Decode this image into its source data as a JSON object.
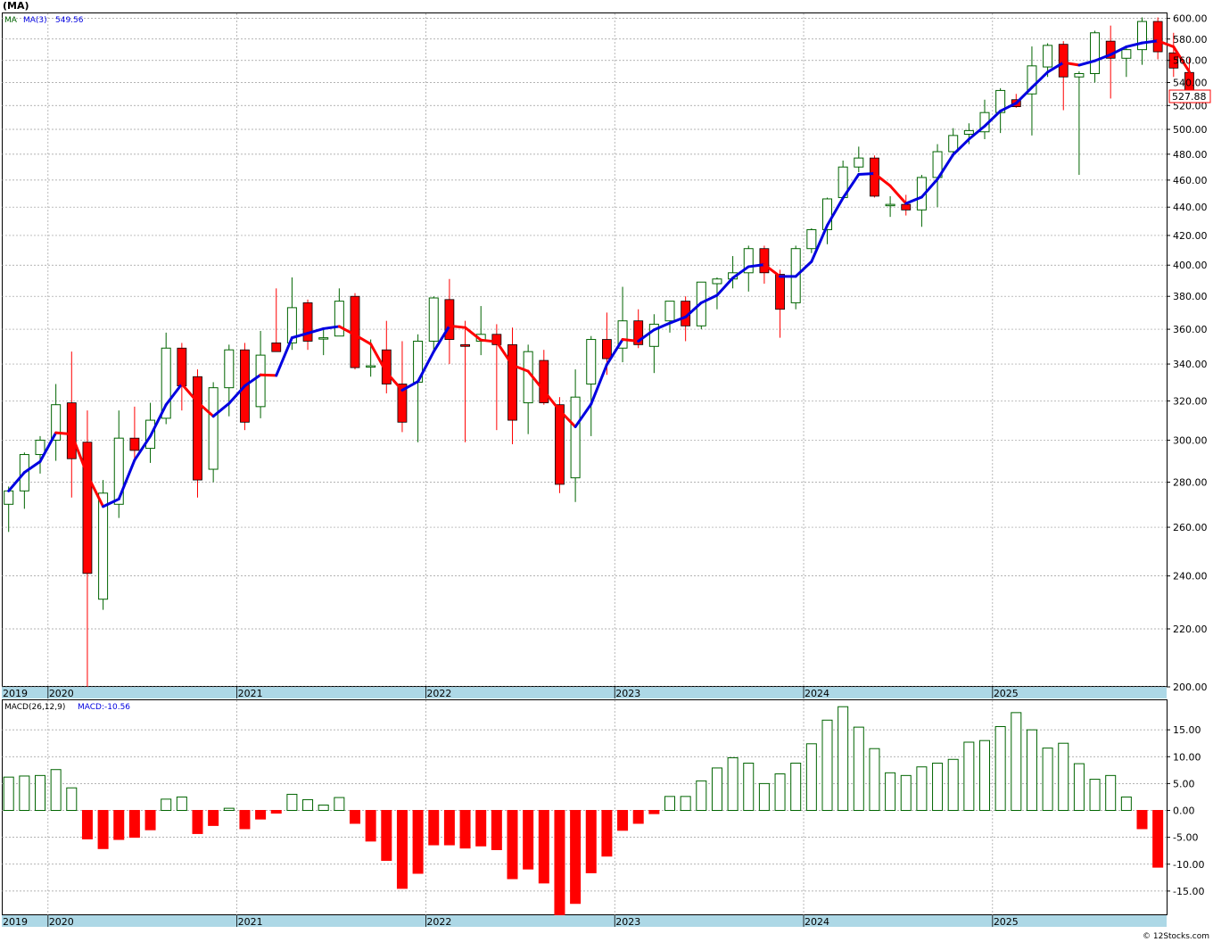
{
  "ticker": "(MA)",
  "watermark": "© 12Stocks.com",
  "colors": {
    "up": "#006400",
    "down": "#ff0000",
    "ma_up": "#0000e0",
    "ma_down": "#ff0000",
    "axis_band": "#add8e6"
  },
  "chart_data": [
    {
      "type": "candlestick",
      "name": "price",
      "legend_label": "MA",
      "indicator_label": "MA(3)",
      "indicator_value": "549.56",
      "last_price_label": "527.88",
      "scale": "log",
      "ylim": [
        200,
        605
      ],
      "yticks": [
        200,
        220,
        240,
        260,
        280,
        300,
        320,
        340,
        360,
        380,
        400,
        420,
        440,
        460,
        480,
        500,
        520,
        540,
        560,
        580,
        600
      ],
      "ytick_labels": [
        "200.00",
        "220.00",
        "240.00",
        "260.00",
        "280.00",
        "300.00",
        "320.00",
        "340.00",
        "360.00",
        "380.00",
        "400.00",
        "420.00",
        "440.00",
        "460.00",
        "480.00",
        "500.00",
        "520.00",
        "540.00",
        "560.00",
        "580.00",
        "600.00"
      ],
      "grid": true,
      "year_labels": [
        "2019",
        "2020",
        "2021",
        "2022",
        "2023",
        "2024",
        "2025"
      ],
      "year_boundary_index": [
        -0.5,
        2.5,
        14.5,
        26.5,
        38.5,
        50.5,
        62.5
      ],
      "candles": [
        {
          "o": 270,
          "h": 278,
          "l": 258,
          "c": 276
        },
        {
          "o": 276,
          "h": 294,
          "l": 268,
          "c": 293
        },
        {
          "o": 293,
          "h": 302,
          "l": 284,
          "c": 300
        },
        {
          "o": 300,
          "h": 329,
          "l": 290,
          "c": 318
        },
        {
          "o": 319,
          "h": 347,
          "l": 273,
          "c": 291
        },
        {
          "o": 299,
          "h": 315,
          "l": 200,
          "c": 241
        },
        {
          "o": 231,
          "h": 281,
          "l": 227,
          "c": 275
        },
        {
          "o": 270,
          "h": 315,
          "l": 264,
          "c": 301
        },
        {
          "o": 301,
          "h": 317,
          "l": 290,
          "c": 295
        },
        {
          "o": 296,
          "h": 319,
          "l": 289,
          "c": 310
        },
        {
          "o": 311,
          "h": 358,
          "l": 308,
          "c": 349
        },
        {
          "o": 349,
          "h": 352,
          "l": 315,
          "c": 328
        },
        {
          "o": 333,
          "h": 337,
          "l": 273,
          "c": 281
        },
        {
          "o": 286,
          "h": 330,
          "l": 280,
          "c": 327
        },
        {
          "o": 327,
          "h": 351,
          "l": 312,
          "c": 348
        },
        {
          "o": 348,
          "h": 352,
          "l": 305,
          "c": 309
        },
        {
          "o": 317,
          "h": 359,
          "l": 311,
          "c": 345
        },
        {
          "o": 352,
          "h": 385,
          "l": 347,
          "c": 347
        },
        {
          "o": 352,
          "h": 392,
          "l": 348,
          "c": 373
        },
        {
          "o": 376,
          "h": 378,
          "l": 348,
          "c": 353
        },
        {
          "o": 355,
          "h": 360,
          "l": 345,
          "c": 355
        },
        {
          "o": 356,
          "h": 385,
          "l": 356,
          "c": 377
        },
        {
          "o": 380,
          "h": 382,
          "l": 337,
          "c": 338
        },
        {
          "o": 339,
          "h": 354,
          "l": 333,
          "c": 339
        },
        {
          "o": 348,
          "h": 365,
          "l": 324,
          "c": 329
        },
        {
          "o": 329,
          "h": 353,
          "l": 304,
          "c": 309
        },
        {
          "o": 330,
          "h": 357,
          "l": 299,
          "c": 353
        },
        {
          "o": 353,
          "h": 380,
          "l": 348,
          "c": 379
        },
        {
          "o": 378,
          "h": 391,
          "l": 340,
          "c": 354
        },
        {
          "o": 351,
          "h": 365,
          "l": 299,
          "c": 350
        },
        {
          "o": 353,
          "h": 374,
          "l": 345,
          "c": 357
        },
        {
          "o": 357,
          "h": 363,
          "l": 305,
          "c": 351
        },
        {
          "o": 351,
          "h": 361,
          "l": 298,
          "c": 310
        },
        {
          "o": 319,
          "h": 351,
          "l": 303,
          "c": 347
        },
        {
          "o": 342,
          "h": 348,
          "l": 318,
          "c": 319
        },
        {
          "o": 318,
          "h": 322,
          "l": 275,
          "c": 279
        },
        {
          "o": 282,
          "h": 337,
          "l": 271,
          "c": 322
        },
        {
          "o": 329,
          "h": 356,
          "l": 302,
          "c": 354
        },
        {
          "o": 354,
          "h": 370,
          "l": 334,
          "c": 343
        },
        {
          "o": 349,
          "h": 386,
          "l": 341,
          "c": 365
        },
        {
          "o": 365,
          "h": 372,
          "l": 349,
          "c": 351
        },
        {
          "o": 350,
          "h": 369,
          "l": 335,
          "c": 363
        },
        {
          "o": 365,
          "h": 377,
          "l": 358,
          "c": 377
        },
        {
          "o": 377,
          "h": 380,
          "l": 353,
          "c": 362
        },
        {
          "o": 362,
          "h": 389,
          "l": 360,
          "c": 389
        },
        {
          "o": 388,
          "h": 392,
          "l": 372,
          "c": 391
        },
        {
          "o": 391,
          "h": 406,
          "l": 385,
          "c": 395
        },
        {
          "o": 395,
          "h": 413,
          "l": 383,
          "c": 411
        },
        {
          "o": 411,
          "h": 413,
          "l": 388,
          "c": 395
        },
        {
          "o": 394,
          "h": 397,
          "l": 355,
          "c": 372
        },
        {
          "o": 376,
          "h": 413,
          "l": 372,
          "c": 411
        },
        {
          "o": 411,
          "h": 425,
          "l": 408,
          "c": 424
        },
        {
          "o": 424,
          "h": 447,
          "l": 414,
          "c": 446
        },
        {
          "o": 447,
          "h": 475,
          "l": 446,
          "c": 470
        },
        {
          "o": 470,
          "h": 486,
          "l": 466,
          "c": 477
        },
        {
          "o": 477,
          "h": 479,
          "l": 447,
          "c": 448
        },
        {
          "o": 441,
          "h": 448,
          "l": 433,
          "c": 442
        },
        {
          "o": 442,
          "h": 449,
          "l": 434,
          "c": 438
        },
        {
          "o": 438,
          "h": 464,
          "l": 426,
          "c": 462
        },
        {
          "o": 462,
          "h": 488,
          "l": 440,
          "c": 482
        },
        {
          "o": 482,
          "h": 501,
          "l": 478,
          "c": 495
        },
        {
          "o": 496,
          "h": 505,
          "l": 488,
          "c": 499
        },
        {
          "o": 498,
          "h": 525,
          "l": 492,
          "c": 514
        },
        {
          "o": 514,
          "h": 535,
          "l": 497,
          "c": 533
        },
        {
          "o": 525,
          "h": 530,
          "l": 518,
          "c": 519
        },
        {
          "o": 530,
          "h": 573,
          "l": 495,
          "c": 555
        },
        {
          "o": 554,
          "h": 576,
          "l": 545,
          "c": 574
        },
        {
          "o": 575,
          "h": 578,
          "l": 516,
          "c": 545
        },
        {
          "o": 545,
          "h": 550,
          "l": 464,
          "c": 548
        },
        {
          "o": 548,
          "h": 588,
          "l": 540,
          "c": 586
        },
        {
          "o": 578,
          "h": 593,
          "l": 526,
          "c": 562
        },
        {
          "o": 562,
          "h": 573,
          "l": 545,
          "c": 570
        },
        {
          "o": 570,
          "h": 601,
          "l": 556,
          "c": 597
        },
        {
          "o": 597,
          "h": 601,
          "l": 561,
          "c": 568
        },
        {
          "o": 567,
          "h": 586,
          "l": 545,
          "c": 553
        },
        {
          "o": 549,
          "h": 562,
          "l": 522,
          "c": 527.88
        }
      ]
    },
    {
      "type": "bar",
      "name": "macd",
      "label": "MACD(26,12,9)",
      "value_label": "MACD:-10.56",
      "ylim": [
        -19.5,
        20.5
      ],
      "yticks": [
        -15,
        -10,
        -5,
        0,
        5,
        10,
        15
      ],
      "ytick_labels": [
        "-15.00",
        "-10.00",
        "-5.00",
        "0.00",
        "5.00",
        "10.00",
        "15.00"
      ],
      "grid": true,
      "values": [
        6.2,
        6.4,
        6.5,
        7.6,
        4.2,
        -5.3,
        -7.1,
        -5.4,
        -5.0,
        -3.6,
        2.1,
        2.5,
        -4.3,
        -2.8,
        0.4,
        -3.4,
        -1.6,
        -0.5,
        3.0,
        2.0,
        1.0,
        2.4,
        -2.4,
        -5.7,
        -9.3,
        -14.5,
        -11.7,
        -6.4,
        -6.4,
        -7.0,
        -6.6,
        -7.3,
        -12.7,
        -10.9,
        -13.5,
        -19.4,
        -17.3,
        -11.6,
        -8.5,
        -3.7,
        -2.4,
        -0.6,
        2.6,
        2.6,
        5.5,
        7.9,
        9.8,
        8.8,
        5.0,
        6.8,
        8.8,
        12.4,
        16.8,
        19.3,
        15.5,
        11.5,
        7.0,
        6.5,
        8.1,
        8.8,
        9.5,
        12.7,
        13.0,
        15.6,
        18.2,
        15.0,
        11.6,
        12.5,
        8.7,
        5.8,
        6.5,
        2.5,
        -3.4,
        -10.56
      ]
    }
  ]
}
